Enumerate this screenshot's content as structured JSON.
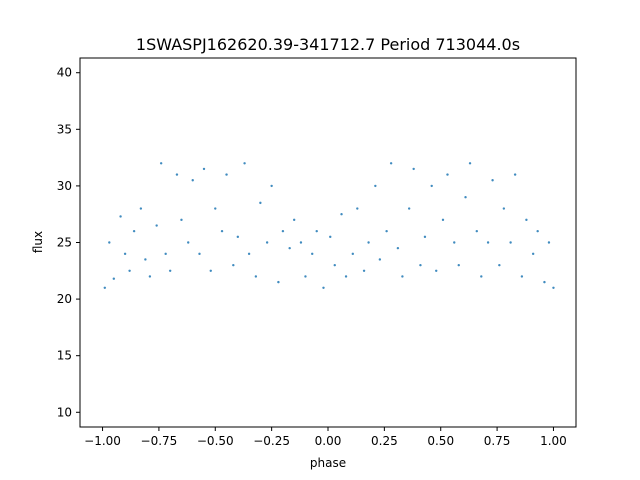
{
  "chart_data": {
    "type": "scatter",
    "title": "1SWASPJ162620.39-341712.7 Period 713044.0s",
    "xlabel": "phase",
    "ylabel": "flux",
    "xlim": [
      -1.1,
      1.1
    ],
    "ylim": [
      8.7,
      41.3
    ],
    "xticks": [
      -1.0,
      -0.75,
      -0.5,
      -0.25,
      0.0,
      0.25,
      0.5,
      0.75,
      1.0
    ],
    "xtick_labels": [
      "−1.00",
      "−0.75",
      "−0.50",
      "−0.25",
      "0.00",
      "0.25",
      "0.50",
      "0.75",
      "1.00"
    ],
    "yticks": [
      10,
      15,
      20,
      25,
      30,
      35,
      40
    ],
    "ytick_labels": [
      "10",
      "15",
      "20",
      "25",
      "30",
      "35",
      "40"
    ],
    "grid": false,
    "marker_color": "#1f77b4",
    "series": [
      {
        "x": [
          -0.99,
          -0.97,
          -0.95,
          -0.92,
          -0.9,
          -0.88,
          -0.86,
          -0.83,
          -0.81,
          -0.79,
          -0.76,
          -0.74,
          -0.72,
          -0.7,
          -0.67,
          -0.65,
          -0.62,
          -0.6,
          -0.57,
          -0.55,
          -0.52,
          -0.5,
          -0.47,
          -0.45,
          -0.42,
          -0.4,
          -0.37,
          -0.35,
          -0.32,
          -0.3,
          -0.27,
          -0.25,
          -0.22,
          -0.2,
          -0.17,
          -0.15,
          -0.12,
          -0.1,
          -0.07,
          -0.05,
          -0.02,
          0.01,
          0.03,
          0.06,
          0.08,
          0.11,
          0.13,
          0.16,
          0.18,
          0.21,
          0.23,
          0.26,
          0.28,
          0.31,
          0.33,
          0.36,
          0.38,
          0.41,
          0.43,
          0.46,
          0.48,
          0.51,
          0.53,
          0.56,
          0.58,
          0.61,
          0.63,
          0.66,
          0.68,
          0.71,
          0.73,
          0.76,
          0.78,
          0.81,
          0.83,
          0.86,
          0.88,
          0.91,
          0.93,
          0.96,
          0.98,
          1.0
        ],
        "y": [
          21.0,
          25.0,
          21.8,
          27.3,
          24.0,
          22.5,
          26.0,
          28.0,
          23.5,
          22.0,
          26.5,
          32.0,
          24.0,
          22.5,
          31.0,
          27.0,
          25.0,
          30.5,
          24.0,
          31.5,
          22.5,
          28.0,
          26.0,
          31.0,
          23.0,
          25.5,
          32.0,
          24.0,
          22.0,
          28.5,
          25.0,
          30.0,
          21.5,
          26.0,
          24.5,
          27.0,
          25.0,
          22.0,
          24.0,
          26.0,
          21.0,
          25.5,
          23.0,
          27.5,
          22.0,
          24.0,
          28.0,
          22.5,
          25.0,
          30.0,
          23.5,
          26.0,
          32.0,
          24.5,
          22.0,
          28.0,
          31.5,
          23.0,
          25.5,
          30.0,
          22.5,
          27.0,
          31.0,
          25.0,
          23.0,
          29.0,
          32.0,
          26.0,
          22.0,
          25.0,
          30.5,
          23.0,
          28.0,
          25.0,
          31.0,
          22.0,
          27.0,
          24.0,
          26.0,
          21.5,
          25.0,
          21.0
        ]
      }
    ]
  }
}
